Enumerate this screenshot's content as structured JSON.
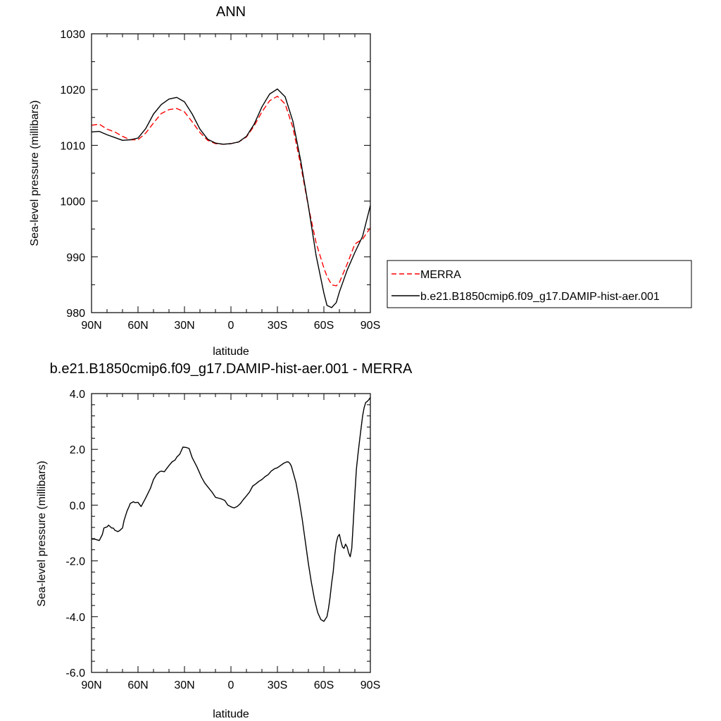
{
  "chart_data": [
    {
      "type": "line",
      "title": "ANN",
      "xlabel": "latitude",
      "ylabel": "Sea-level pressure (millibars)",
      "xlim": [
        90,
        -90
      ],
      "ylim": [
        980,
        1030
      ],
      "x_ticks": [
        90,
        60,
        30,
        0,
        -30,
        -60,
        -90
      ],
      "x_tick_labels": [
        "90N",
        "60N",
        "30N",
        "0",
        "30S",
        "60S",
        "90S"
      ],
      "y_ticks": [
        980,
        990,
        1000,
        1010,
        1020,
        1030
      ],
      "y_tick_labels": [
        "980",
        "990",
        "1000",
        "1010",
        "1020",
        "1030"
      ],
      "legend_position": "right",
      "series": [
        {
          "name": "MERRA",
          "color": "#ff0000",
          "style": "dashed",
          "x": [
            90,
            85,
            80,
            75,
            70,
            65,
            60,
            55,
            50,
            45,
            40,
            35,
            30,
            25,
            20,
            15,
            10,
            5,
            0,
            -5,
            -10,
            -15,
            -20,
            -25,
            -30,
            -35,
            -40,
            -45,
            -50,
            -55,
            -60,
            -62,
            -65,
            -68,
            -70,
            -75,
            -80,
            -85,
            -90
          ],
          "y": [
            1013.6,
            1013.8,
            1012.9,
            1012.4,
            1011.6,
            1011.0,
            1011.0,
            1012.2,
            1014.0,
            1015.7,
            1016.4,
            1016.6,
            1016.0,
            1014.2,
            1012.3,
            1010.9,
            1010.3,
            1010.2,
            1010.3,
            1010.6,
            1011.5,
            1013.5,
            1016.0,
            1018.0,
            1018.8,
            1017.4,
            1013.2,
            1006.5,
            999.0,
            992.5,
            988.0,
            986.5,
            985.0,
            984.8,
            985.4,
            988.7,
            992.3,
            993.2,
            995.2
          ]
        },
        {
          "name": "b.e21.B1850cmip6.f09_g17.DAMIP-hist-aer.001",
          "color": "#000000",
          "style": "solid",
          "x": [
            90,
            85,
            80,
            75,
            70,
            65,
            60,
            55,
            50,
            45,
            40,
            35,
            30,
            25,
            20,
            15,
            10,
            5,
            0,
            -5,
            -10,
            -15,
            -20,
            -25,
            -30,
            -35,
            -40,
            -45,
            -50,
            -55,
            -60,
            -62,
            -65,
            -68,
            -70,
            -75,
            -80,
            -85,
            -90
          ],
          "y": [
            1012.4,
            1012.5,
            1011.9,
            1011.4,
            1010.9,
            1011.0,
            1011.3,
            1013.0,
            1015.6,
            1017.3,
            1018.3,
            1018.6,
            1017.8,
            1015.6,
            1012.9,
            1011.1,
            1010.4,
            1010.2,
            1010.3,
            1010.6,
            1011.6,
            1013.8,
            1016.9,
            1019.2,
            1020.1,
            1018.7,
            1014.3,
            1007.3,
            999.1,
            990.2,
            983.5,
            981.3,
            980.9,
            981.8,
            983.7,
            987.6,
            990.8,
            993.7,
            999.2
          ]
        }
      ]
    },
    {
      "type": "line",
      "title": "b.e21.B1850cmip6.f09_g17.DAMIP-hist-aer.001 - MERRA",
      "xlabel": "latitude",
      "ylabel": "Sea-level pressure (millibars)",
      "xlim": [
        90,
        -90
      ],
      "ylim": [
        -6.0,
        4.0
      ],
      "x_ticks": [
        90,
        60,
        30,
        0,
        -30,
        -60,
        -90
      ],
      "x_tick_labels": [
        "90N",
        "60N",
        "30N",
        "0",
        "30S",
        "60S",
        "90S"
      ],
      "y_ticks": [
        -6,
        -4,
        -2,
        0,
        2,
        4
      ],
      "y_tick_labels": [
        "-6.0",
        "-4.0",
        "-2.0",
        "0.0",
        "2.0",
        "4.0"
      ],
      "series": [
        {
          "color": "#000000",
          "style": "solid",
          "x": [
            90,
            88,
            85,
            83,
            82,
            80,
            79,
            77,
            76,
            75,
            73,
            72,
            70,
            69,
            67,
            66,
            65,
            63,
            62,
            60,
            58,
            55,
            52,
            50,
            48,
            46,
            45,
            43,
            40,
            38,
            36,
            35,
            33,
            31,
            29,
            27,
            25,
            22,
            19,
            17,
            15,
            12,
            10,
            8,
            6,
            4,
            2,
            0,
            -2,
            -4,
            -6,
            -8,
            -10,
            -12,
            -14,
            -16,
            -18,
            -20,
            -22,
            -24,
            -26,
            -28,
            -30,
            -32,
            -34,
            -36,
            -37,
            -38,
            -39,
            -40,
            -42,
            -44,
            -46,
            -48,
            -50,
            -52,
            -54,
            -56,
            -58,
            -60,
            -62,
            -63,
            -64,
            -65,
            -66,
            -67,
            -68,
            -69,
            -70,
            -71,
            -72,
            -73,
            -74,
            -75,
            -76,
            -77,
            -78,
            -79,
            -80,
            -81,
            -82,
            -83,
            -84,
            -85,
            -86,
            -87,
            -88,
            -89,
            -90
          ],
          "y": [
            -1.22,
            -1.22,
            -1.27,
            -1.05,
            -0.82,
            -0.78,
            -0.72,
            -0.82,
            -0.82,
            -0.9,
            -0.95,
            -0.92,
            -0.82,
            -0.55,
            -0.2,
            -0.08,
            0.06,
            0.12,
            0.09,
            0.1,
            -0.05,
            0.26,
            0.6,
            0.92,
            1.1,
            1.2,
            1.22,
            1.2,
            1.42,
            1.55,
            1.62,
            1.72,
            1.83,
            2.08,
            2.07,
            2.03,
            1.7,
            1.38,
            1.0,
            0.8,
            0.66,
            0.45,
            0.28,
            0.25,
            0.22,
            0.17,
            0.0,
            -0.06,
            -0.1,
            -0.05,
            0.05,
            0.2,
            0.33,
            0.47,
            0.68,
            0.76,
            0.85,
            0.92,
            1.02,
            1.09,
            1.22,
            1.3,
            1.34,
            1.42,
            1.5,
            1.55,
            1.55,
            1.5,
            1.4,
            1.2,
            0.8,
            0.2,
            -0.5,
            -1.3,
            -2.1,
            -2.8,
            -3.4,
            -3.85,
            -4.1,
            -4.17,
            -4.0,
            -3.7,
            -3.3,
            -2.8,
            -2.4,
            -1.8,
            -1.35,
            -1.13,
            -1.05,
            -1.3,
            -1.5,
            -1.55,
            -1.4,
            -1.5,
            -1.72,
            -1.85,
            -1.55,
            -0.6,
            0.4,
            1.3,
            1.82,
            2.3,
            2.75,
            3.2,
            3.5,
            3.68,
            3.72,
            3.78,
            3.86
          ]
        }
      ]
    }
  ]
}
